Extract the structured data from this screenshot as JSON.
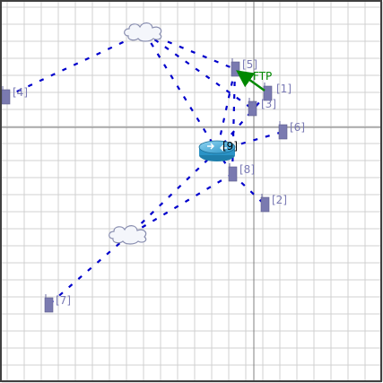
{
  "colors": {
    "grid": "#d0d0d0",
    "axis": "#808080",
    "link": "#0000cc",
    "flow": "#008800",
    "label": "#7b7bb5",
    "node": "#7a7ab0",
    "frame": "#404040"
  },
  "nodes": [
    {
      "id": "1",
      "label": "[1]",
      "type": "mobile-node"
    },
    {
      "id": "2",
      "label": "[2]",
      "type": "mobile-node"
    },
    {
      "id": "3",
      "label": "[3]",
      "type": "mobile-node"
    },
    {
      "id": "4",
      "label": "[4]",
      "type": "mobile-node"
    },
    {
      "id": "5",
      "label": "[5]",
      "type": "mobile-node"
    },
    {
      "id": "6",
      "label": "[6]",
      "type": "mobile-node"
    },
    {
      "id": "7",
      "label": "[7]",
      "type": "mobile-node"
    },
    {
      "id": "8",
      "label": "[8]",
      "type": "mobile-node"
    },
    {
      "id": "9",
      "label": "[9]",
      "type": "router"
    }
  ],
  "clouds": [
    {
      "id": "cloud-top",
      "type": "cloud"
    },
    {
      "id": "cloud-bottom",
      "type": "cloud"
    }
  ],
  "flow": {
    "label": "FTP",
    "from": "1",
    "to": "5"
  }
}
